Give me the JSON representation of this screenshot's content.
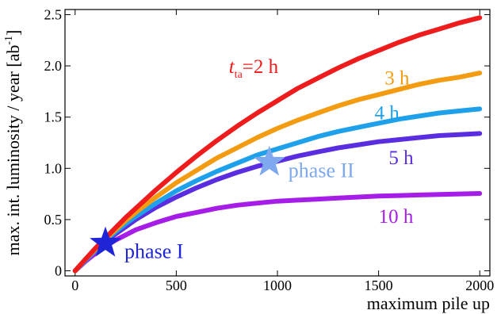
{
  "chart_data": {
    "type": "line",
    "xlabel": "maximum pile up",
    "ylabel": "max. int. luminosity / year [ab",
    "ylabel_sup": "-1",
    "ylabel_close": "]",
    "xlim": [
      -50,
      2050
    ],
    "ylim": [
      -0.05,
      2.55
    ],
    "xticks": [
      0,
      500,
      1000,
      1500,
      2000
    ],
    "yticks": [
      0,
      0.5,
      1.0,
      1.5,
      2.0,
      2.5
    ],
    "xtick_labels": [
      "0",
      "500",
      "1000",
      "1500",
      "2000"
    ],
    "ytick_labels": [
      "0",
      "0.5",
      "1.0",
      "1.5",
      "2.0",
      "2.5"
    ],
    "grid": false,
    "x": [
      0,
      50,
      100,
      150,
      200,
      250,
      300,
      400,
      500,
      600,
      700,
      800,
      900,
      1000,
      1100,
      1200,
      1300,
      1400,
      1500,
      1600,
      1700,
      1800,
      1900,
      2000
    ],
    "series": [
      {
        "name": "2 h",
        "label_prefix": "t",
        "label_sub": "ta",
        "label_mid": "=2 h",
        "color": "#ee1c1c",
        "values": [
          0,
          0.11,
          0.22,
          0.32,
          0.42,
          0.52,
          0.61,
          0.79,
          0.96,
          1.12,
          1.27,
          1.41,
          1.54,
          1.66,
          1.78,
          1.88,
          1.98,
          2.07,
          2.15,
          2.23,
          2.3,
          2.36,
          2.42,
          2.47
        ]
      },
      {
        "name": "3 h",
        "color": "#f39c12",
        "values": [
          0,
          0.11,
          0.21,
          0.31,
          0.4,
          0.49,
          0.57,
          0.72,
          0.86,
          0.98,
          1.1,
          1.2,
          1.3,
          1.39,
          1.47,
          1.54,
          1.61,
          1.67,
          1.72,
          1.77,
          1.82,
          1.86,
          1.89,
          1.93
        ]
      },
      {
        "name": "4 h",
        "color": "#1ea0ea",
        "values": [
          0,
          0.1,
          0.2,
          0.3,
          0.38,
          0.46,
          0.53,
          0.66,
          0.78,
          0.88,
          0.97,
          1.05,
          1.13,
          1.19,
          1.25,
          1.31,
          1.36,
          1.4,
          1.44,
          1.48,
          1.51,
          1.54,
          1.56,
          1.58
        ]
      },
      {
        "name": "5 h",
        "color": "#5a2ee0",
        "values": [
          0,
          0.1,
          0.2,
          0.28,
          0.36,
          0.43,
          0.5,
          0.62,
          0.72,
          0.81,
          0.89,
          0.96,
          1.02,
          1.07,
          1.12,
          1.16,
          1.2,
          1.23,
          1.26,
          1.28,
          1.3,
          1.32,
          1.33,
          1.34
        ]
      },
      {
        "name": "10 h",
        "color": "#a61de8",
        "values": [
          0,
          0.09,
          0.17,
          0.24,
          0.3,
          0.35,
          0.4,
          0.47,
          0.53,
          0.57,
          0.61,
          0.64,
          0.66,
          0.68,
          0.69,
          0.7,
          0.71,
          0.72,
          0.73,
          0.735,
          0.74,
          0.745,
          0.75,
          0.755
        ]
      }
    ],
    "series_label_positions": [
      {
        "x": 760,
        "y": 1.93
      },
      {
        "x": 1530,
        "y": 1.82
      },
      {
        "x": 1480,
        "y": 1.48
      },
      {
        "x": 1550,
        "y": 1.04
      },
      {
        "x": 1500,
        "y": 0.47
      }
    ],
    "annotations": [
      {
        "text": "phase I",
        "x": 150,
        "y": 0.27,
        "marker": "star",
        "color": "#1f24d6"
      },
      {
        "text": "phase II",
        "x": 960,
        "y": 1.06,
        "marker": "star",
        "color": "#7fa9ee"
      }
    ]
  }
}
